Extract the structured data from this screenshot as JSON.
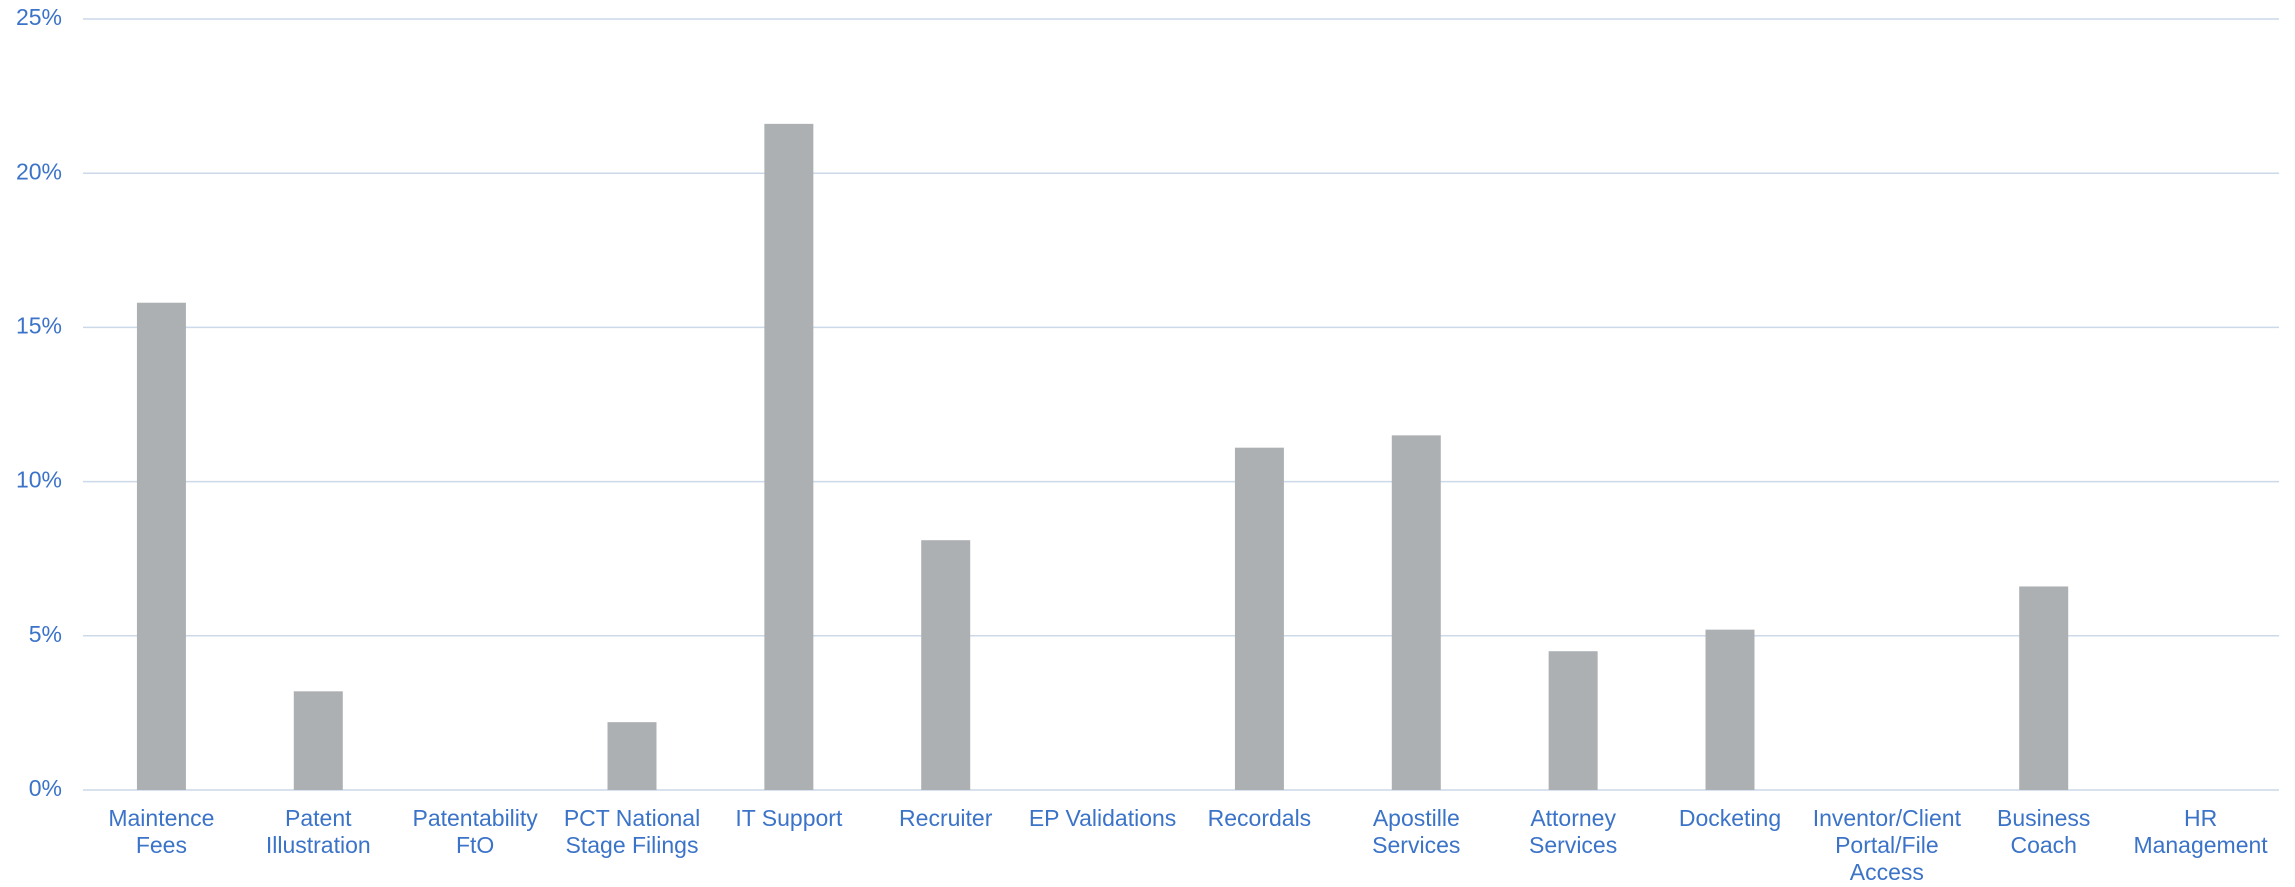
{
  "chart_data": {
    "type": "bar",
    "categories": [
      "Maintence\nFees",
      "Patent\nIllustration",
      "Patentability\nFtO",
      "PCT National\nStage Filings",
      "IT Support",
      "Recruiter",
      "EP Validations",
      "Recordals",
      "Apostille\nServices",
      "Attorney\nServices",
      "Docketing",
      "Inventor/Client\nPortal/File\nAccess",
      "Business\nCoach",
      "HR\nManagement"
    ],
    "values": [
      15.8,
      3.2,
      0,
      2.2,
      21.6,
      8.1,
      0,
      11.1,
      11.5,
      4.5,
      5.2,
      0,
      6.6,
      0
    ],
    "color": "#adb0b3",
    "ylim": [
      0,
      25
    ],
    "yticks": [
      {
        "value": 0,
        "label": "0%"
      },
      {
        "value": 5,
        "label": "5%"
      },
      {
        "value": 10,
        "label": "10%"
      },
      {
        "value": 15,
        "label": "15%"
      },
      {
        "value": 20,
        "label": "20%"
      },
      {
        "value": 25,
        "label": "25%"
      }
    ],
    "grid": true
  }
}
